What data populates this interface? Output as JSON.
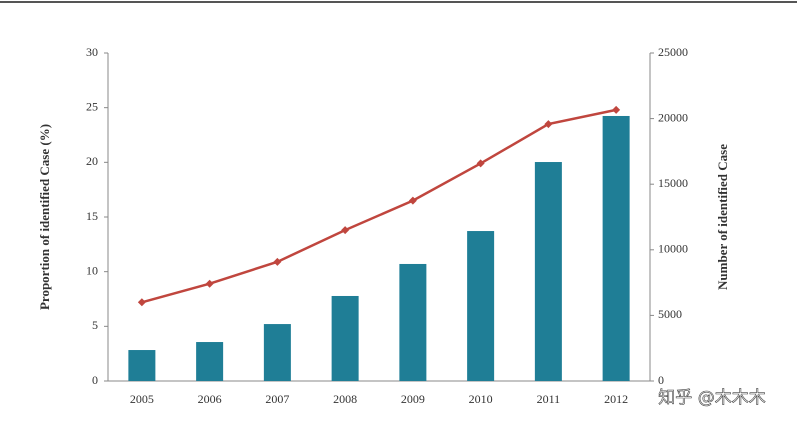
{
  "chart_data": {
    "type": "bar-line",
    "y_label": "Proportion of identified Case (%)",
    "y2_label": "Number of identified Case",
    "categories": [
      "2005",
      "2006",
      "2007",
      "2008",
      "2009",
      "2010",
      "2011",
      "2012"
    ],
    "series": [
      {
        "type": "bar",
        "axis": "y2",
        "color": "#1f7e96",
        "values": [
          2360,
          2970,
          4340,
          6480,
          8920,
          11430,
          16690,
          20200
        ]
      },
      {
        "type": "line",
        "axis": "y",
        "color": "#c0463e",
        "values": [
          7.2,
          8.9,
          10.9,
          13.8,
          16.5,
          19.9,
          23.5,
          24.8
        ]
      }
    ],
    "ylim": [
      0,
      30
    ],
    "yticks": [
      0,
      5,
      10,
      15,
      20,
      25,
      30
    ],
    "y2lim": [
      0,
      25000
    ],
    "y2ticks": [
      0,
      5000,
      10000,
      15000,
      20000,
      25000
    ],
    "watermark": "知乎 @木木木"
  }
}
